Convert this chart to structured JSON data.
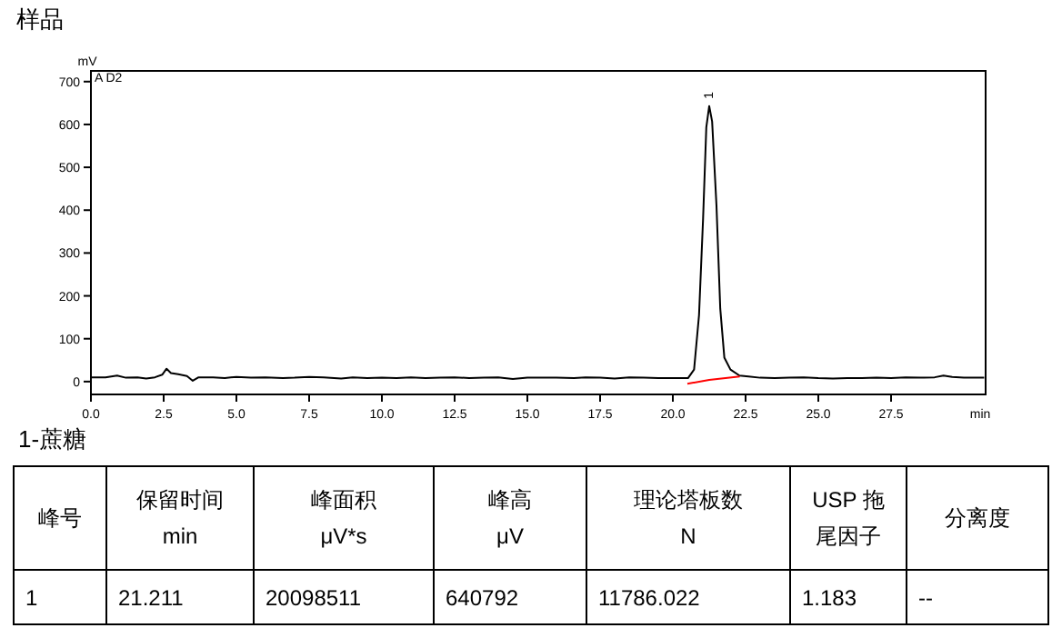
{
  "chart_data": {
    "type": "line",
    "title": "样品",
    "ylabel": "mV",
    "xlabel": "min",
    "xlim": [
      0,
      30.75
    ],
    "ylim": [
      -30,
      725
    ],
    "xticks": [
      {
        "value": 0,
        "label": "0.0"
      },
      {
        "value": 2.5,
        "label": "2.5"
      },
      {
        "value": 5,
        "label": "5.0"
      },
      {
        "value": 7.5,
        "label": "7.5"
      },
      {
        "value": 10,
        "label": "10.0"
      },
      {
        "value": 12.5,
        "label": "12.5"
      },
      {
        "value": 15,
        "label": "15.0"
      },
      {
        "value": 17.5,
        "label": "17.5"
      },
      {
        "value": 20,
        "label": "20.0"
      },
      {
        "value": 22.5,
        "label": "22.5"
      },
      {
        "value": 25,
        "label": "25.0"
      },
      {
        "value": 27.5,
        "label": "27.5"
      }
    ],
    "yticks": [
      0,
      100,
      200,
      300,
      400,
      500,
      600,
      700
    ],
    "grid": false,
    "marker": "none",
    "line_style": "solid",
    "series": [
      {
        "color": "#000000",
        "x": [
          0,
          0.5,
          0.9,
          1.2,
          1.6,
          1.9,
          2.2,
          2.45,
          2.6,
          2.75,
          3.0,
          3.3,
          3.5,
          3.7,
          4.2,
          4.6,
          5.0,
          5.5,
          6.0,
          6.6,
          7.0,
          7.5,
          8.0,
          8.6,
          9.0,
          9.5,
          10.0,
          10.5,
          11.0,
          11.5,
          12.0,
          12.5,
          13.0,
          13.5,
          14.0,
          14.5,
          15.0,
          15.5,
          16.0,
          16.6,
          17.0,
          17.5,
          18.0,
          18.5,
          19.0,
          19.5,
          20.0,
          20.3,
          20.52,
          20.73,
          20.9,
          21.04,
          21.15,
          21.25,
          21.35,
          21.5,
          21.63,
          21.77,
          21.98,
          22.29,
          22.6,
          23.0,
          23.5,
          24.0,
          24.5,
          25.0,
          25.5,
          26.0,
          26.5,
          27.0,
          27.5,
          28.0,
          28.5,
          29.0,
          29.3,
          29.6,
          30.0,
          30.7
        ],
        "values": [
          10,
          10,
          14,
          9,
          10,
          7,
          10,
          16,
          30,
          20,
          17,
          13,
          2,
          10,
          10,
          8,
          11,
          9,
          10,
          8,
          9,
          11,
          10,
          7,
          10,
          8,
          9,
          8,
          10,
          8,
          9,
          10,
          8,
          9,
          10,
          6,
          9,
          9,
          9,
          8,
          10,
          9,
          7,
          10,
          9,
          8,
          8,
          8,
          8,
          28,
          155,
          381,
          593,
          643,
          607,
          410,
          170,
          56,
          28,
          14,
          12,
          9,
          8,
          9,
          10,
          8,
          7,
          8,
          8,
          9,
          8,
          10,
          9,
          10,
          14,
          11,
          9,
          9
        ]
      },
      {
        "color": "#ff0000",
        "x": [
          20.5,
          21.25,
          22.3
        ],
        "values": [
          -5,
          4,
          12
        ]
      }
    ],
    "annotations": [
      "A D2",
      {
        "text": "1",
        "x": 21.25,
        "y": 643
      },
      "1-蔗糖",
      "峰号",
      "保留时间\nmin",
      "峰面积\nμV*s",
      "峰高\nμV",
      "理论塔板数\nN",
      "USP 拖尾因子",
      "分离度",
      "1",
      "21.211",
      "20098511",
      "640792",
      "11786.022",
      "1.183",
      "--"
    ]
  }
}
